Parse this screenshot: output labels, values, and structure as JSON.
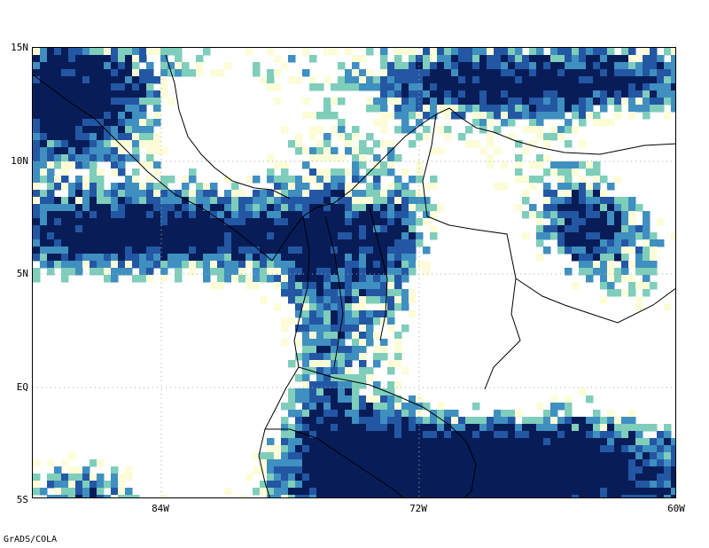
{
  "map": {
    "lat_labels": [
      "15N",
      "10N",
      "5N",
      "EQ",
      "5S"
    ],
    "lon_labels": [
      "84W",
      "72W",
      "60W"
    ],
    "credit": "GrADS/COLA",
    "palette": [
      "#ffffff",
      "#fcfdd8",
      "#7fcdbb",
      "#3f8fc0",
      "#2357a4",
      "#081d58"
    ],
    "coastline_color": "#000000",
    "gridline_color": "#aaaaaa",
    "gridline_style": "dotted"
  }
}
